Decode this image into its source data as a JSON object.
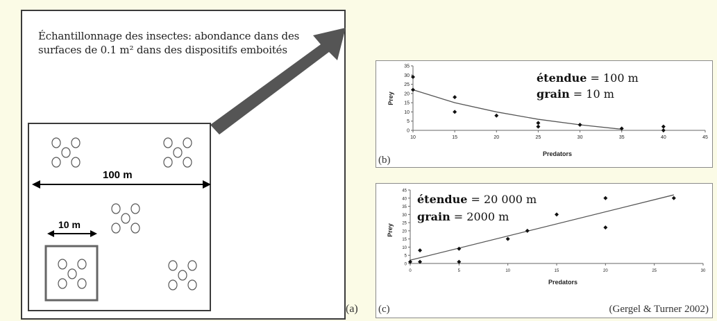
{
  "panel_a": {
    "description": "Échantillonnage des insectes: abondance dans des surfaces de 0.1 m² dans des dispositifs emboités",
    "label_100m": "100 m",
    "label_10m": "10 m",
    "panel_label": "(a)"
  },
  "chart_data": [
    {
      "type": "scatter",
      "panel_label": "(b)",
      "xlabel": "Predators",
      "ylabel": "Prey",
      "xlim": [
        10,
        45
      ],
      "ylim": [
        0,
        35
      ],
      "xticks": [
        10,
        15,
        20,
        25,
        30,
        35,
        40,
        45
      ],
      "yticks": [
        0,
        5,
        10,
        15,
        20,
        25,
        30,
        35
      ],
      "points": [
        {
          "x": 10,
          "y": 29
        },
        {
          "x": 10,
          "y": 22
        },
        {
          "x": 15,
          "y": 18
        },
        {
          "x": 15,
          "y": 10
        },
        {
          "x": 20,
          "y": 8
        },
        {
          "x": 25,
          "y": 4
        },
        {
          "x": 25,
          "y": 2
        },
        {
          "x": 30,
          "y": 3
        },
        {
          "x": 35,
          "y": 1
        },
        {
          "x": 40,
          "y": 2
        },
        {
          "x": 40,
          "y": 0
        }
      ],
      "trendline": "polynomial",
      "trend": [
        {
          "x": 10,
          "y": 22
        },
        {
          "x": 15,
          "y": 15
        },
        {
          "x": 20,
          "y": 10
        },
        {
          "x": 25,
          "y": 6
        },
        {
          "x": 30,
          "y": 3
        },
        {
          "x": 35,
          "y": 0.6
        }
      ],
      "annotation": [
        {
          "bold": "étendue",
          "rest": " = 100 m"
        },
        {
          "bold": "grain",
          "rest": " = 10 m"
        }
      ]
    },
    {
      "type": "scatter",
      "panel_label": "(c)",
      "xlabel": "Predators",
      "ylabel": "Prey",
      "xlim": [
        0,
        30
      ],
      "ylim": [
        0,
        45
      ],
      "xticks": [
        0,
        5,
        10,
        15,
        20,
        25,
        30
      ],
      "yticks": [
        0,
        5,
        10,
        15,
        20,
        25,
        30,
        35,
        40,
        45
      ],
      "points": [
        {
          "x": 0,
          "y": 1
        },
        {
          "x": 1,
          "y": 8
        },
        {
          "x": 1,
          "y": 1
        },
        {
          "x": 5,
          "y": 9
        },
        {
          "x": 5,
          "y": 1
        },
        {
          "x": 10,
          "y": 15
        },
        {
          "x": 12,
          "y": 20
        },
        {
          "x": 15,
          "y": 30
        },
        {
          "x": 20,
          "y": 40
        },
        {
          "x": 20,
          "y": 22
        },
        {
          "x": 27,
          "y": 40
        }
      ],
      "trendline": "linear",
      "trend": [
        {
          "x": 0,
          "y": 2
        },
        {
          "x": 27,
          "y": 42
        }
      ],
      "annotation": [
        {
          "bold": "étendue",
          "rest": " = 20 000 m"
        },
        {
          "bold": "grain",
          "rest": " = 2000 m"
        }
      ],
      "source": "(Gergel & Turner 2002)"
    }
  ],
  "colors": {
    "background": "#fbfbe6",
    "arrow": "#555555",
    "frame": "#3a3a3a",
    "inner_box": "#666666"
  }
}
